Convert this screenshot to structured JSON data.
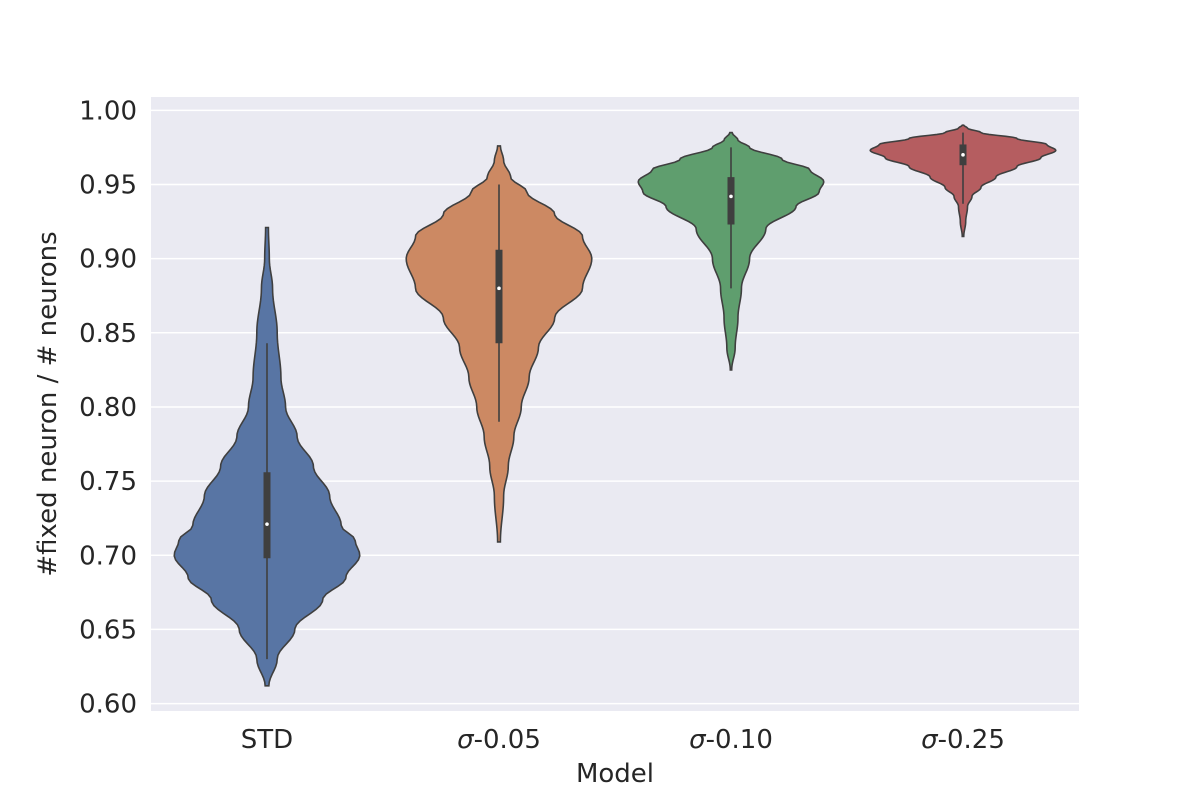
{
  "chart_data": {
    "type": "violin",
    "xlabel": "Model",
    "ylabel": "#fixed neuron / # neurons",
    "ylim": [
      0.595,
      1.009
    ],
    "yticks": [
      "0.60",
      "0.65",
      "0.70",
      "0.75",
      "0.80",
      "0.85",
      "0.90",
      "0.95",
      "1.00"
    ],
    "grid": true,
    "categories": [
      "STD",
      "σ-0.05",
      "σ-0.10",
      "σ-0.25"
    ],
    "series": [
      {
        "category": "STD",
        "color": "#5875a4",
        "min": 0.612,
        "q1": 0.698,
        "median": 0.721,
        "q3": 0.756,
        "max": 0.921,
        "whisker_low": 0.63,
        "whisker_high": 0.843,
        "density": [
          [
            0.612,
            0.4
          ],
          [
            0.63,
            2.2
          ],
          [
            0.65,
            6.0
          ],
          [
            0.67,
            12.0
          ],
          [
            0.685,
            17.0
          ],
          [
            0.7,
            20.0
          ],
          [
            0.71,
            19.0
          ],
          [
            0.72,
            16.0
          ],
          [
            0.74,
            13.5
          ],
          [
            0.76,
            10.0
          ],
          [
            0.78,
            6.5
          ],
          [
            0.8,
            4.0
          ],
          [
            0.82,
            3.0
          ],
          [
            0.85,
            2.2
          ],
          [
            0.88,
            1.2
          ],
          [
            0.9,
            0.5
          ],
          [
            0.921,
            0.3
          ]
        ]
      },
      {
        "category": "σ-0.05",
        "color": "#cc8963",
        "min": 0.709,
        "q1": 0.843,
        "median": 0.88,
        "q3": 0.906,
        "max": 0.976,
        "whisker_low": 0.79,
        "whisker_high": 0.95,
        "density": [
          [
            0.709,
            0.3
          ],
          [
            0.74,
            1.0
          ],
          [
            0.76,
            2.0
          ],
          [
            0.78,
            3.2
          ],
          [
            0.8,
            4.8
          ],
          [
            0.82,
            6.5
          ],
          [
            0.84,
            8.5
          ],
          [
            0.86,
            12.0
          ],
          [
            0.88,
            18.0
          ],
          [
            0.9,
            20.0
          ],
          [
            0.915,
            18.0
          ],
          [
            0.93,
            12.0
          ],
          [
            0.945,
            6.0
          ],
          [
            0.955,
            2.5
          ],
          [
            0.966,
            1.0
          ],
          [
            0.976,
            0.3
          ]
        ]
      },
      {
        "category": "σ-0.10",
        "color": "#5f9e6e",
        "min": 0.825,
        "q1": 0.923,
        "median": 0.942,
        "q3": 0.955,
        "max": 0.985,
        "whisker_low": 0.88,
        "whisker_high": 0.975,
        "density": [
          [
            0.825,
            0.3
          ],
          [
            0.84,
            1.8
          ],
          [
            0.86,
            3.0
          ],
          [
            0.88,
            4.5
          ],
          [
            0.9,
            8.0
          ],
          [
            0.92,
            15.0
          ],
          [
            0.935,
            28.0
          ],
          [
            0.945,
            38.0
          ],
          [
            0.952,
            40.0
          ],
          [
            0.96,
            34.0
          ],
          [
            0.967,
            22.0
          ],
          [
            0.975,
            8.0
          ],
          [
            0.98,
            3.0
          ],
          [
            0.985,
            0.5
          ]
        ]
      },
      {
        "category": "σ-0.25",
        "color": "#b55d60",
        "min": 0.915,
        "q1": 0.963,
        "median": 0.97,
        "q3": 0.977,
        "max": 0.99,
        "whisker_low": 0.937,
        "whisker_high": 0.985,
        "density": [
          [
            0.915,
            0.5
          ],
          [
            0.925,
            1.8
          ],
          [
            0.935,
            3.0
          ],
          [
            0.942,
            6.0
          ],
          [
            0.948,
            12.0
          ],
          [
            0.955,
            22.0
          ],
          [
            0.962,
            36.0
          ],
          [
            0.968,
            52.0
          ],
          [
            0.973,
            62.0
          ],
          [
            0.977,
            56.0
          ],
          [
            0.981,
            36.0
          ],
          [
            0.985,
            12.0
          ],
          [
            0.988,
            3.0
          ],
          [
            0.99,
            0.5
          ]
        ]
      }
    ]
  }
}
